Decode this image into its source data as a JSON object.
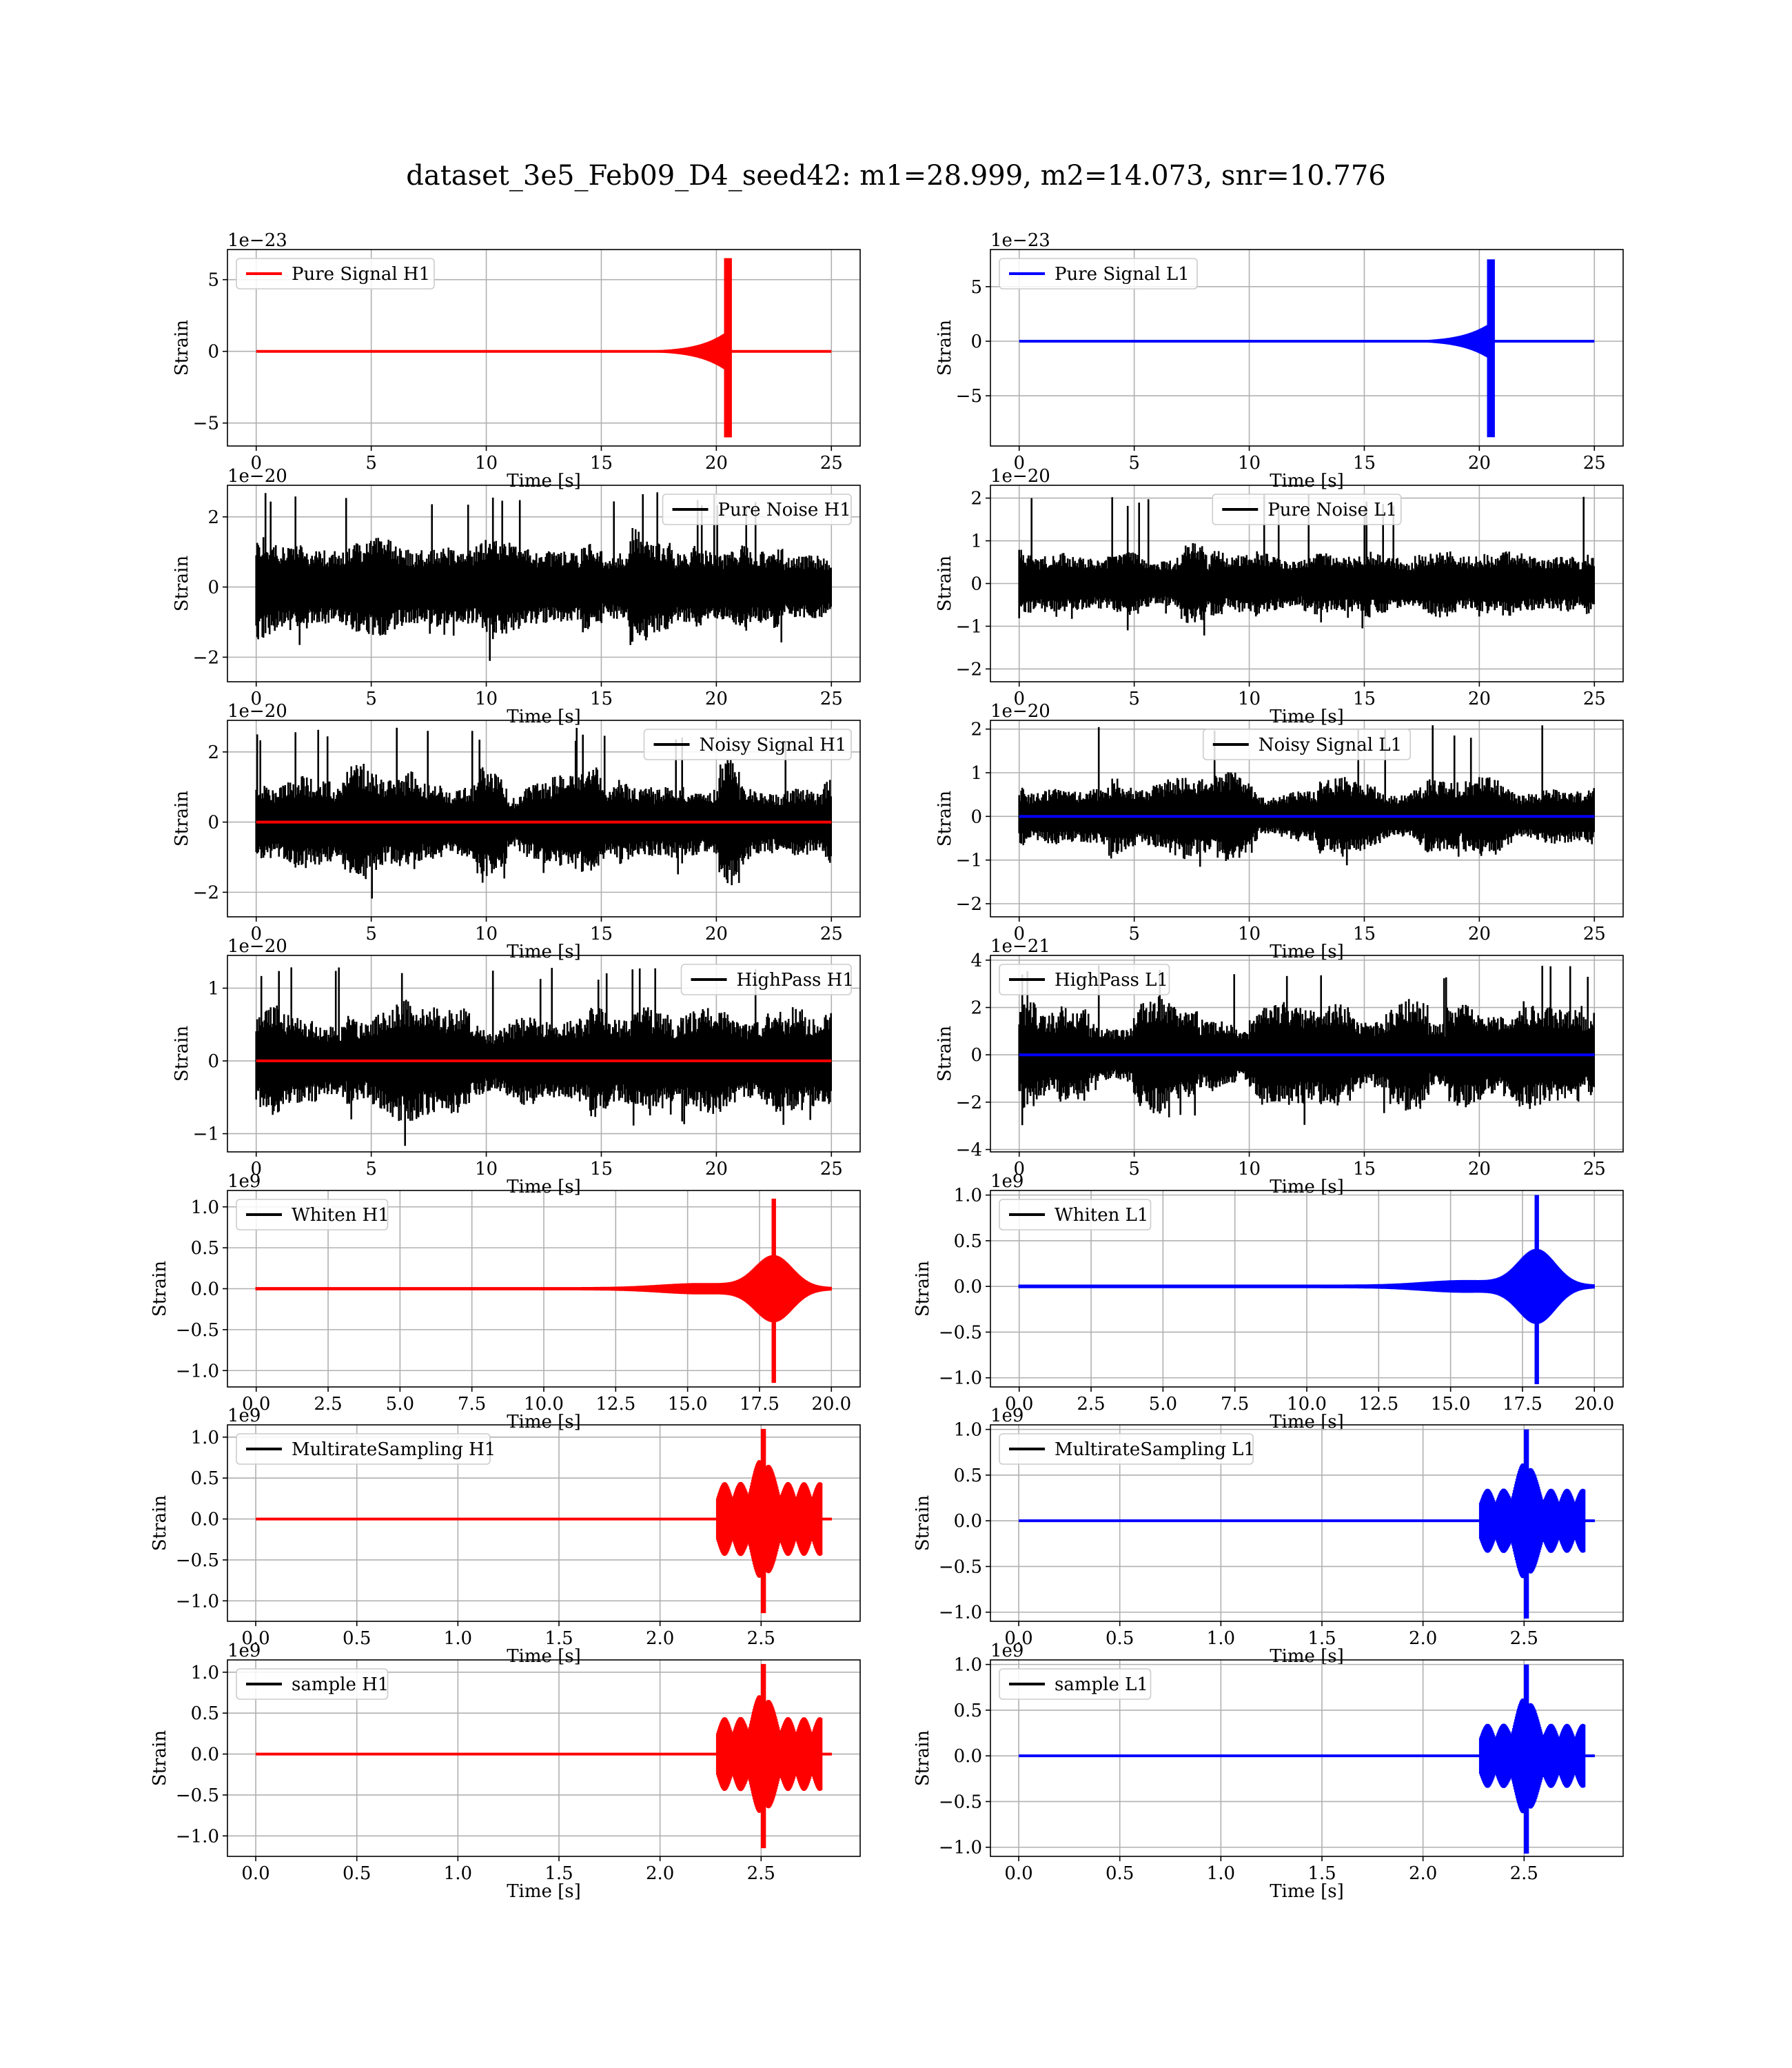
{
  "figure": {
    "suptitle": "dataset_3e5_Feb09_D4_seed42: m1=28.999, m2=14.073, snr=10.776"
  },
  "colors": {
    "H1": "#ff0000",
    "L1": "#0000ff",
    "noise": "#000000",
    "grid": "#b0b0b0"
  },
  "chart_data": [
    {
      "type": "line",
      "row": 0,
      "col": 0,
      "legend": "Pure Signal H1",
      "legend_color": "#ff0000",
      "legend_loc": "upper left",
      "ylabel": "Strain",
      "xlabel": "Time [s]",
      "offset": "1e−23",
      "xlim": [
        -1.25,
        26.25
      ],
      "ylim": [
        -6.6,
        7.1
      ],
      "xticks": [
        0,
        5,
        10,
        15,
        20,
        25
      ],
      "xticklabels": [
        "0",
        "5",
        "10",
        "15",
        "20",
        "25"
      ],
      "yticks": [
        -5,
        0,
        5
      ],
      "yticklabels": [
        "−5",
        "0",
        "5"
      ],
      "grid": true,
      "series": [
        {
          "name": "Pure Signal H1",
          "color": "#ff0000",
          "kind": "signal",
          "t_start": 0,
          "t_end": 25,
          "t_onset": 13.5,
          "t_merger": 20.6,
          "amp_mid": 1.5,
          "amp_peak": 6.5,
          "amp_min": -6.0
        }
      ]
    },
    {
      "type": "line",
      "row": 0,
      "col": 1,
      "legend": "Pure Signal L1",
      "legend_color": "#0000ff",
      "legend_loc": "upper left",
      "ylabel": "Strain",
      "xlabel": "Time [s]",
      "offset": "1e−23",
      "xlim": [
        -1.25,
        26.25
      ],
      "ylim": [
        -9.6,
        8.4
      ],
      "xticks": [
        0,
        5,
        10,
        15,
        20,
        25
      ],
      "xticklabels": [
        "0",
        "5",
        "10",
        "15",
        "20",
        "25"
      ],
      "yticks": [
        -5,
        0,
        5
      ],
      "yticklabels": [
        "−5",
        "0",
        "5"
      ],
      "grid": true,
      "series": [
        {
          "name": "Pure Signal L1",
          "color": "#0000ff",
          "kind": "signal",
          "t_start": 0,
          "t_end": 25,
          "t_onset": 13.5,
          "t_merger": 20.6,
          "amp_mid": 1.8,
          "amp_peak": 7.5,
          "amp_min": -8.8
        }
      ]
    },
    {
      "type": "line",
      "row": 1,
      "col": 0,
      "legend": "Pure Noise H1",
      "legend_color": "#000000",
      "legend_loc": "upper right",
      "ylabel": "Strain",
      "xlabel": "Time [s]",
      "offset": "1e−20",
      "xlim": [
        -1.25,
        26.25
      ],
      "ylim": [
        -2.7,
        2.9
      ],
      "xticks": [
        0,
        5,
        10,
        15,
        20,
        25
      ],
      "xticklabels": [
        "0",
        "5",
        "10",
        "15",
        "20",
        "25"
      ],
      "yticks": [
        -2,
        0,
        2
      ],
      "yticklabels": [
        "−2",
        "0",
        "2"
      ],
      "grid": true,
      "series": [
        {
          "name": "Pure Noise H1",
          "color": "#000000",
          "kind": "noise",
          "t_start": 0,
          "t_end": 25,
          "amp": 1.6,
          "amp_max": 2.7
        }
      ]
    },
    {
      "type": "line",
      "row": 1,
      "col": 1,
      "legend": "Pure Noise L1",
      "legend_color": "#000000",
      "legend_loc": "upper center",
      "ylabel": "Strain",
      "xlabel": "Time [s]",
      "offset": "1e−20",
      "xlim": [
        -1.25,
        26.25
      ],
      "ylim": [
        -2.3,
        2.3
      ],
      "xticks": [
        0,
        5,
        10,
        15,
        20,
        25
      ],
      "xticklabels": [
        "0",
        "5",
        "10",
        "15",
        "20",
        "25"
      ],
      "yticks": [
        -2,
        -1,
        0,
        1,
        2
      ],
      "yticklabels": [
        "−2",
        "−1",
        "0",
        "1",
        "2"
      ],
      "grid": true,
      "series": [
        {
          "name": "Pure Noise L1",
          "color": "#000000",
          "kind": "noise",
          "t_start": 0,
          "t_end": 25,
          "amp": 1.0,
          "amp_max": 2.1
        }
      ]
    },
    {
      "type": "line",
      "row": 2,
      "col": 0,
      "legend": "Noisy Signal H1",
      "legend_color": "#000000",
      "legend_loc": "upper right",
      "ylabel": "Strain",
      "xlabel": "Time [s]",
      "offset": "1e−20",
      "xlim": [
        -1.25,
        26.25
      ],
      "ylim": [
        -2.7,
        2.9
      ],
      "xticks": [
        0,
        5,
        10,
        15,
        20,
        25
      ],
      "xticklabels": [
        "0",
        "5",
        "10",
        "15",
        "20",
        "25"
      ],
      "yticks": [
        -2,
        0,
        2
      ],
      "yticklabels": [
        "−2",
        "0",
        "2"
      ],
      "grid": true,
      "series": [
        {
          "name": "Noisy Signal H1",
          "color": "#000000",
          "kind": "noise",
          "t_start": 0,
          "t_end": 25,
          "amp": 1.6,
          "amp_max": 2.7
        },
        {
          "name": "Pure Signal H1",
          "color": "#ff0000",
          "kind": "flat",
          "t_start": 0,
          "t_end": 25,
          "value": 0
        }
      ]
    },
    {
      "type": "line",
      "row": 2,
      "col": 1,
      "legend": "Noisy Signal L1",
      "legend_color": "#000000",
      "legend_loc": "upper center",
      "ylabel": "Strain",
      "xlabel": "Time [s]",
      "offset": "1e−20",
      "xlim": [
        -1.25,
        26.25
      ],
      "ylim": [
        -2.3,
        2.2
      ],
      "xticks": [
        0,
        5,
        10,
        15,
        20,
        25
      ],
      "xticklabels": [
        "0",
        "5",
        "10",
        "15",
        "20",
        "25"
      ],
      "yticks": [
        -2,
        -1,
        0,
        1,
        2
      ],
      "yticklabels": [
        "−2",
        "−1",
        "0",
        "1",
        "2"
      ],
      "grid": true,
      "series": [
        {
          "name": "Noisy Signal L1",
          "color": "#000000",
          "kind": "noise",
          "t_start": 0,
          "t_end": 25,
          "amp": 1.0,
          "amp_max": 2.1
        },
        {
          "name": "Pure Signal L1",
          "color": "#0000ff",
          "kind": "flat",
          "t_start": 0,
          "t_end": 25,
          "value": 0
        }
      ]
    },
    {
      "type": "line",
      "row": 3,
      "col": 0,
      "legend": "HighPass H1",
      "legend_color": "#000000",
      "legend_loc": "upper right",
      "ylabel": "Strain",
      "xlabel": "Time [s]",
      "offset": "1e−20",
      "xlim": [
        -1.25,
        26.25
      ],
      "ylim": [
        -1.25,
        1.45
      ],
      "xticks": [
        0,
        5,
        10,
        15,
        20,
        25
      ],
      "xticklabels": [
        "0",
        "5",
        "10",
        "15",
        "20",
        "25"
      ],
      "yticks": [
        -1,
        0,
        1
      ],
      "yticklabels": [
        "−1",
        "0",
        "1"
      ],
      "grid": true,
      "series": [
        {
          "name": "HighPass H1",
          "color": "#000000",
          "kind": "noise",
          "t_start": 0,
          "t_end": 25,
          "amp": 0.8,
          "amp_max": 1.3
        },
        {
          "name": "Pure Signal H1",
          "color": "#ff0000",
          "kind": "flat",
          "t_start": 0,
          "t_end": 25,
          "value": 0
        }
      ]
    },
    {
      "type": "line",
      "row": 3,
      "col": 1,
      "legend": "HighPass L1",
      "legend_color": "#000000",
      "legend_loc": "upper left",
      "ylabel": "Strain",
      "xlabel": "Time [s]",
      "offset": "1e−21",
      "xlim": [
        -1.25,
        26.25
      ],
      "ylim": [
        -4.1,
        4.2
      ],
      "xticks": [
        0,
        5,
        10,
        15,
        20,
        25
      ],
      "xticklabels": [
        "0",
        "5",
        "10",
        "15",
        "20",
        "25"
      ],
      "yticks": [
        -4,
        -2,
        0,
        2,
        4
      ],
      "yticklabels": [
        "−4",
        "−2",
        "0",
        "2",
        "4"
      ],
      "grid": true,
      "series": [
        {
          "name": "HighPass L1",
          "color": "#000000",
          "kind": "noise",
          "t_start": 0,
          "t_end": 25,
          "amp": 2.4,
          "amp_max": 3.8
        },
        {
          "name": "Pure Signal L1",
          "color": "#0000ff",
          "kind": "flat",
          "t_start": 0,
          "t_end": 25,
          "value": 0
        }
      ]
    },
    {
      "type": "line",
      "row": 4,
      "col": 0,
      "legend": "Whiten H1",
      "legend_color": "#000000",
      "legend_loc": "upper left",
      "ylabel": "Strain",
      "xlabel": "Time [s]",
      "offset": "1e9",
      "xlim": [
        -1.0,
        21.0
      ],
      "ylim": [
        -1.2,
        1.2
      ],
      "xticks": [
        0,
        2.5,
        5,
        7.5,
        10,
        12.5,
        15,
        17.5,
        20
      ],
      "xticklabels": [
        "0.0",
        "2.5",
        "5.0",
        "7.5",
        "10.0",
        "12.5",
        "15.0",
        "17.5",
        "20.0"
      ],
      "yticks": [
        -1,
        -0.5,
        0,
        0.5,
        1
      ],
      "yticklabels": [
        "−1.0",
        "−0.5",
        "0.0",
        "0.5",
        "1.0"
      ],
      "grid": true,
      "series": [
        {
          "name": "Whiten H1",
          "color": "#ff0000",
          "kind": "burst",
          "t_start": 0,
          "t_end": 20,
          "t_peak": 18.0,
          "burst_width": 0.9,
          "amp_peak": 1.1,
          "amp_min": -1.15
        }
      ]
    },
    {
      "type": "line",
      "row": 4,
      "col": 1,
      "legend": "Whiten L1",
      "legend_color": "#000000",
      "legend_loc": "upper left",
      "ylabel": "Strain",
      "xlabel": "Time [s]",
      "offset": "1e9",
      "xlim": [
        -1.0,
        21.0
      ],
      "ylim": [
        -1.1,
        1.05
      ],
      "xticks": [
        0,
        2.5,
        5,
        7.5,
        10,
        12.5,
        15,
        17.5,
        20
      ],
      "xticklabels": [
        "0.0",
        "2.5",
        "5.0",
        "7.5",
        "10.0",
        "12.5",
        "15.0",
        "17.5",
        "20.0"
      ],
      "yticks": [
        -1,
        -0.5,
        0,
        0.5,
        1
      ],
      "yticklabels": [
        "−1.0",
        "−0.5",
        "0.0",
        "0.5",
        "1.0"
      ],
      "grid": true,
      "series": [
        {
          "name": "Whiten L1",
          "color": "#0000ff",
          "kind": "burst",
          "t_start": 0,
          "t_end": 20,
          "t_peak": 18.0,
          "burst_width": 0.9,
          "amp_peak": 1.0,
          "amp_min": -1.07
        }
      ]
    },
    {
      "type": "line",
      "row": 5,
      "col": 0,
      "legend": "MultirateSampling H1",
      "legend_color": "#000000",
      "legend_loc": "upper left",
      "ylabel": "Strain",
      "xlabel": "Time [s]",
      "offset": "1e9",
      "xlim": [
        -0.14,
        2.99
      ],
      "ylim": [
        -1.25,
        1.15
      ],
      "xticks": [
        0,
        0.5,
        1,
        1.5,
        2,
        2.5
      ],
      "xticklabels": [
        "0.0",
        "0.5",
        "1.0",
        "1.5",
        "2.0",
        "2.5"
      ],
      "yticks": [
        -1,
        -0.5,
        0,
        0.5,
        1
      ],
      "yticklabels": [
        "−1.0",
        "−0.5",
        "0.0",
        "0.5",
        "1.0"
      ],
      "grid": true,
      "series": [
        {
          "name": "MultirateSampling H1",
          "color": "#ff0000",
          "kind": "packet",
          "t_start": 0,
          "t_end": 2.85,
          "t_onset": 2.28,
          "t_stop": 2.8,
          "t_peak": 2.51,
          "amp": 0.45,
          "amp_peak": 1.1,
          "amp_min": -1.15
        }
      ]
    },
    {
      "type": "line",
      "row": 5,
      "col": 1,
      "legend": "MultirateSampling L1",
      "legend_color": "#000000",
      "legend_loc": "upper left",
      "ylabel": "Strain",
      "xlabel": "Time [s]",
      "offset": "1e9",
      "xlim": [
        -0.14,
        2.99
      ],
      "ylim": [
        -1.1,
        1.05
      ],
      "xticks": [
        0,
        0.5,
        1,
        1.5,
        2,
        2.5
      ],
      "xticklabels": [
        "0.0",
        "0.5",
        "1.0",
        "1.5",
        "2.0",
        "2.5"
      ],
      "yticks": [
        -1,
        -0.5,
        0,
        0.5,
        1
      ],
      "yticklabels": [
        "−1.0",
        "−0.5",
        "0.0",
        "0.5",
        "1.0"
      ],
      "grid": true,
      "series": [
        {
          "name": "MultirateSampling L1",
          "color": "#0000ff",
          "kind": "packet",
          "t_start": 0,
          "t_end": 2.85,
          "t_onset": 2.28,
          "t_stop": 2.8,
          "t_peak": 2.51,
          "amp": 0.35,
          "amp_peak": 1.0,
          "amp_min": -1.07
        }
      ]
    },
    {
      "type": "line",
      "row": 6,
      "col": 0,
      "legend": "sample H1",
      "legend_color": "#000000",
      "legend_loc": "upper left",
      "ylabel": "Strain",
      "xlabel": "Time [s]",
      "offset": "1e9",
      "xlim": [
        -0.14,
        2.99
      ],
      "ylim": [
        -1.25,
        1.15
      ],
      "xticks": [
        0,
        0.5,
        1,
        1.5,
        2,
        2.5
      ],
      "xticklabels": [
        "0.0",
        "0.5",
        "1.0",
        "1.5",
        "2.0",
        "2.5"
      ],
      "yticks": [
        -1,
        -0.5,
        0,
        0.5,
        1
      ],
      "yticklabels": [
        "−1.0",
        "−0.5",
        "0.0",
        "0.5",
        "1.0"
      ],
      "grid": true,
      "series": [
        {
          "name": "sample H1",
          "color": "#ff0000",
          "kind": "packet",
          "t_start": 0,
          "t_end": 2.85,
          "t_onset": 2.28,
          "t_stop": 2.8,
          "t_peak": 2.51,
          "amp": 0.45,
          "amp_peak": 1.1,
          "amp_min": -1.15
        }
      ]
    },
    {
      "type": "line",
      "row": 6,
      "col": 1,
      "legend": "sample L1",
      "legend_color": "#000000",
      "legend_loc": "upper left",
      "ylabel": "Strain",
      "xlabel": "Time [s]",
      "offset": "1e9",
      "xlim": [
        -0.14,
        2.99
      ],
      "ylim": [
        -1.1,
        1.05
      ],
      "xticks": [
        0,
        0.5,
        1,
        1.5,
        2,
        2.5
      ],
      "xticklabels": [
        "0.0",
        "0.5",
        "1.0",
        "1.5",
        "2.0",
        "2.5"
      ],
      "yticks": [
        -1,
        -0.5,
        0,
        0.5,
        1
      ],
      "yticklabels": [
        "−1.0",
        "−0.5",
        "0.0",
        "0.5",
        "1.0"
      ],
      "grid": true,
      "series": [
        {
          "name": "sample L1",
          "color": "#0000ff",
          "kind": "packet",
          "t_start": 0,
          "t_end": 2.85,
          "t_onset": 2.28,
          "t_stop": 2.8,
          "t_peak": 2.51,
          "amp": 0.35,
          "amp_peak": 1.0,
          "amp_min": -1.07
        }
      ]
    }
  ]
}
